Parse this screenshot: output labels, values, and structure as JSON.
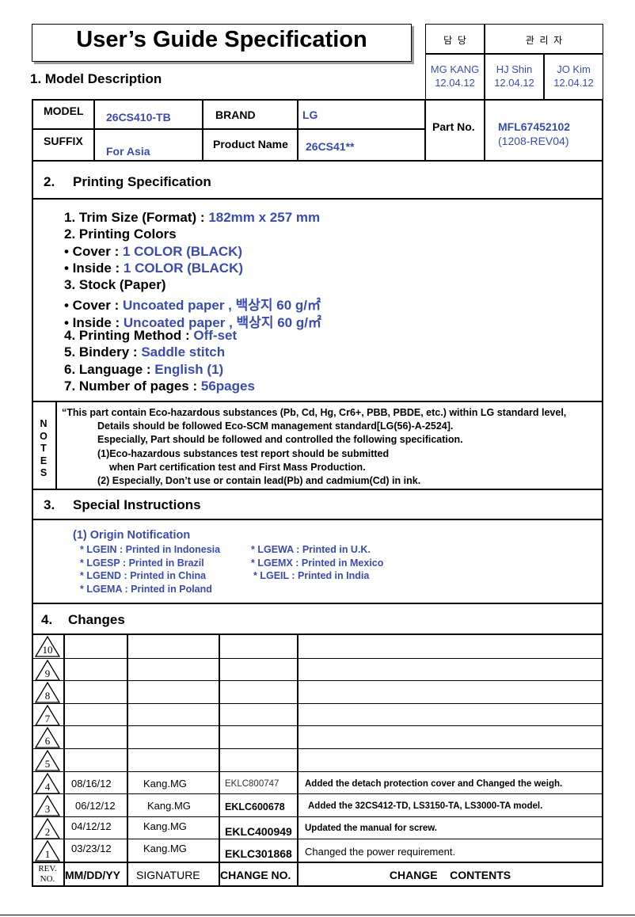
{
  "title": "User’s Guide Specification",
  "approval": {
    "header_left": "담  당",
    "header_right": "관  리  자",
    "signers": [
      {
        "name": "MG KANG",
        "date": "12.04.12"
      },
      {
        "name": "HJ Shin",
        "date": "12.04.12"
      },
      {
        "name": "JO Kim",
        "date": "12.04.12"
      }
    ]
  },
  "model_description": {
    "heading": "1. Model Description",
    "model_label": "MODEL",
    "model_value": "26CS410-TB",
    "brand_label": "BRAND",
    "brand_value": "LG",
    "suffix_label": "SUFFIX",
    "suffix_value": "For Asia",
    "product_name_label": "Product Name",
    "product_name_value": "26CS41**",
    "part_no_label": "Part No.",
    "part_no_value": "MFL67452102",
    "part_no_rev": "(1208-REV04)"
  },
  "printing": {
    "heading_num": "2.",
    "heading": "Printing Specification",
    "items": [
      {
        "label": "1. Trim Size (Format) : ",
        "value": "182mm x 257 mm"
      },
      {
        "label": "2. Printing Colors",
        "value": ""
      },
      {
        "label": "• Cover : ",
        "value": "1 COLOR (BLACK)"
      },
      {
        "label": "• Inside : ",
        "value": "1 COLOR (BLACK)"
      },
      {
        "label": "3. Stock (Paper)",
        "value": ""
      },
      {
        "label": "• Cover : ",
        "value": "Uncoated paper , 백상지 60 g/㎡"
      },
      {
        "label": "• Inside : ",
        "value": "Uncoated paper , 백상지 60 g/㎡"
      },
      {
        "label": "4. Printing Method : ",
        "value": "Off-set"
      },
      {
        "label": "5. Bindery  : ",
        "value": "Saddle stitch"
      },
      {
        "label": "6. Language : ",
        "value": "English (1)"
      },
      {
        "label": "7. Number of pages : ",
        "value": "56pages"
      }
    ]
  },
  "notes": {
    "side_label": [
      "N",
      "O",
      "T",
      "E",
      "S"
    ],
    "lines": [
      "“This part contain Eco-hazardous substances (Pb, Cd, Hg, Cr6+, PBB, PBDE, etc.) within LG standard level,",
      "Details should be followed Eco-SCM management standard[LG(56)-A-2524].",
      "Especially, Part should be followed and controlled the following specification.",
      "(1)Eco-hazardous substances test report should be submitted",
      "when  Part certification test and First Mass Production.",
      "(2) Especially, Don’t use or contain lead(Pb) and cadmium(Cd) in ink."
    ]
  },
  "special": {
    "heading_num": "3.",
    "heading": "Special Instructions",
    "origin_title": "(1) Origin Notification",
    "col1": [
      "* LGEIN : Printed in Indonesia",
      "* LGESP : Printed in Brazil",
      "* LGEND : Printed in China",
      "* LGEMA : Printed in Poland"
    ],
    "col2": [
      "* LGEWA : Printed in U.K.",
      "* LGEMX : Printed in Mexico",
      "* LGEIL : Printed in India"
    ]
  },
  "changes": {
    "heading_num": "4.",
    "heading": "Changes",
    "rows": [
      {
        "rev": "10",
        "date": "",
        "signature": "",
        "change_no": "",
        "contents": ""
      },
      {
        "rev": "9",
        "date": "",
        "signature": "",
        "change_no": "",
        "contents": ""
      },
      {
        "rev": "8",
        "date": "",
        "signature": "",
        "change_no": "",
        "contents": ""
      },
      {
        "rev": "7",
        "date": "",
        "signature": "",
        "change_no": "",
        "contents": ""
      },
      {
        "rev": "6",
        "date": "",
        "signature": "",
        "change_no": "",
        "contents": ""
      },
      {
        "rev": "5",
        "date": "",
        "signature": "",
        "change_no": "",
        "contents": ""
      },
      {
        "rev": "4",
        "date": "08/16/12",
        "signature": "Kang.MG",
        "change_no": "EKLC800747",
        "contents": "Added the detach protection cover and Changed the weigh."
      },
      {
        "rev": "3",
        "date": "06/12/12",
        "signature": "Kang.MG",
        "change_no": "EKLC600678",
        "contents": "Added the 32CS412-TD, LS3150-TA, LS3000-TA model."
      },
      {
        "rev": "2",
        "date": "04/12/12",
        "signature": "Kang.MG",
        "change_no": "EKLC400949",
        "contents": "Updated the manual for screw."
      },
      {
        "rev": "1",
        "date": "03/23/12",
        "signature": "Kang.MG",
        "change_no": "EKLC301868",
        "contents": "Changed the power requirement."
      }
    ],
    "footer": {
      "rev": "REV.",
      "no": "NO.",
      "date": "MM/DD/YY",
      "signature": "SIGNATURE",
      "change_no": "CHANGE NO.",
      "contents": "CHANGE    CONTENTS"
    }
  },
  "colors": {
    "accent": "#3a4bb0",
    "text": "#000000"
  }
}
